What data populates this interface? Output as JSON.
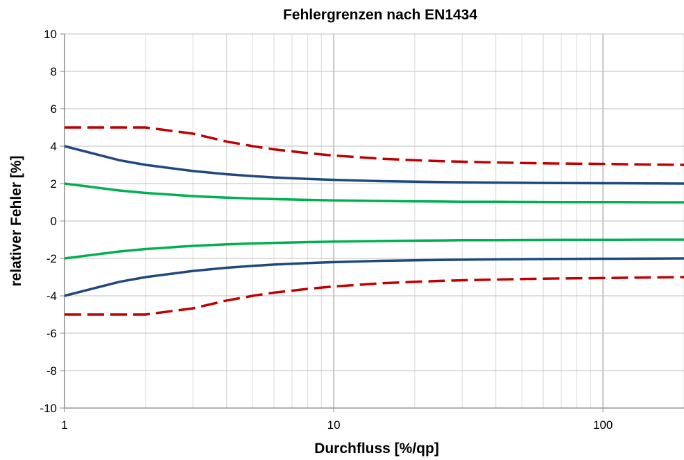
{
  "chart_data": {
    "type": "line",
    "title": "Fehlergrenzen nach EN1434",
    "xlabel": "Durchfluss [%/qp]",
    "ylabel": "relativer Fehler [%]",
    "x_scale": "log",
    "xlim": [
      1,
      200
    ],
    "ylim": [
      -10,
      10
    ],
    "grid": true,
    "x_tick_labels": [
      "1",
      "10",
      "100"
    ],
    "y_tick_labels": [
      "10",
      "8",
      "6",
      "4",
      "2",
      "0",
      "-2",
      "-4",
      "-6",
      "-8",
      "-10"
    ],
    "x_ticks": [
      1,
      10,
      100
    ],
    "y_ticks": [
      10,
      8,
      6,
      4,
      2,
      0,
      -2,
      -4,
      -6,
      -8,
      -10
    ],
    "series": [
      {
        "color": "#c00000",
        "dash": true,
        "x": [
          1,
          1.6,
          2,
          3,
          4,
          5,
          6,
          8,
          10,
          15,
          20,
          25,
          30,
          40,
          50,
          70,
          100,
          150,
          200
        ],
        "values": [
          5,
          5,
          5,
          4.67,
          4.25,
          4.0,
          3.83,
          3.63,
          3.5,
          3.33,
          3.25,
          3.2,
          3.17,
          3.13,
          3.1,
          3.07,
          3.05,
          3.02,
          3.0
        ]
      },
      {
        "color": "#1f497d",
        "dash": false,
        "x": [
          1,
          1.6,
          2,
          3,
          4,
          5,
          6,
          8,
          10,
          15,
          20,
          25,
          30,
          40,
          50,
          70,
          100,
          150,
          200
        ],
        "values": [
          4.0,
          3.25,
          3.0,
          2.67,
          2.5,
          2.4,
          2.33,
          2.25,
          2.2,
          2.13,
          2.1,
          2.08,
          2.07,
          2.05,
          2.04,
          2.03,
          2.02,
          2.01,
          2.0
        ]
      },
      {
        "color": "#00b050",
        "dash": false,
        "x": [
          1,
          1.6,
          2,
          3,
          4,
          5,
          6,
          8,
          10,
          15,
          20,
          25,
          30,
          40,
          50,
          70,
          100,
          150,
          200
        ],
        "values": [
          2.0,
          1.63,
          1.5,
          1.33,
          1.25,
          1.2,
          1.17,
          1.13,
          1.1,
          1.07,
          1.05,
          1.04,
          1.03,
          1.03,
          1.02,
          1.01,
          1.01,
          1.0,
          1.0
        ]
      },
      {
        "color": "#00b050",
        "dash": false,
        "x": [
          1,
          1.6,
          2,
          3,
          4,
          5,
          6,
          8,
          10,
          15,
          20,
          25,
          30,
          40,
          50,
          70,
          100,
          150,
          200
        ],
        "values": [
          -2.0,
          -1.63,
          -1.5,
          -1.33,
          -1.25,
          -1.2,
          -1.17,
          -1.13,
          -1.1,
          -1.07,
          -1.05,
          -1.04,
          -1.03,
          -1.03,
          -1.02,
          -1.01,
          -1.01,
          -1.0,
          -1.0
        ]
      },
      {
        "color": "#1f497d",
        "dash": false,
        "x": [
          1,
          1.6,
          2,
          3,
          4,
          5,
          6,
          8,
          10,
          15,
          20,
          25,
          30,
          40,
          50,
          70,
          100,
          150,
          200
        ],
        "values": [
          -4.0,
          -3.25,
          -3.0,
          -2.67,
          -2.5,
          -2.4,
          -2.33,
          -2.25,
          -2.2,
          -2.13,
          -2.1,
          -2.08,
          -2.07,
          -2.05,
          -2.04,
          -2.03,
          -2.02,
          -2.01,
          -2.0
        ]
      },
      {
        "color": "#c00000",
        "dash": true,
        "x": [
          1,
          1.6,
          2,
          3,
          4,
          5,
          6,
          8,
          10,
          15,
          20,
          25,
          30,
          40,
          50,
          70,
          100,
          150,
          200
        ],
        "values": [
          -5,
          -5,
          -5,
          -4.67,
          -4.25,
          -4.0,
          -3.83,
          -3.63,
          -3.5,
          -3.33,
          -3.25,
          -3.2,
          -3.17,
          -3.13,
          -3.1,
          -3.07,
          -3.05,
          -3.02,
          -3.0
        ]
      }
    ]
  }
}
